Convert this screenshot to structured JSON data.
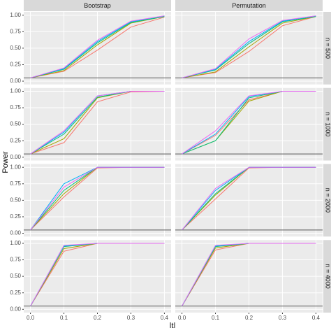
{
  "chart_data": {
    "type": "line",
    "ylabel": "Power",
    "xlabel": "|t|",
    "columns": [
      "Bootstrap",
      "Permutation"
    ],
    "rows": [
      "n = 500",
      "n = 1000",
      "n = 2000",
      "n = 4000"
    ],
    "x": [
      0,
      0.1,
      0.2,
      0.3,
      0.4
    ],
    "xlim": [
      -0.02,
      0.42
    ],
    "xticks": [
      {
        "value": 0,
        "label": "0.0"
      },
      0.1,
      0.2,
      0.3,
      0.4
    ],
    "ylim": [
      -0.05,
      1.05
    ],
    "yticks": [
      {
        "value": 0,
        "label": "0.00"
      },
      0.25,
      {
        "value": 0.5,
        "label": "0.50"
      },
      0.75,
      {
        "value": 1,
        "label": "1.00"
      }
    ],
    "hline": 0.05,
    "grid": true,
    "panels": [
      {
        "series": [
          {
            "color": "#F8766D",
            "values": [
              0.05,
              0.15,
              0.47,
              0.82,
              0.97
            ]
          },
          {
            "color": "#A3A500",
            "values": [
              0.05,
              0.16,
              0.55,
              0.88,
              0.98
            ]
          },
          {
            "color": "#00BF7D",
            "values": [
              0.05,
              0.18,
              0.58,
              0.89,
              0.98
            ]
          },
          {
            "color": "#00B0F6",
            "values": [
              0.05,
              0.19,
              0.6,
              0.9,
              0.99
            ]
          },
          {
            "color": "#E76BF3",
            "values": [
              0.05,
              0.2,
              0.62,
              0.91,
              0.99
            ]
          }
        ]
      },
      {
        "series": [
          {
            "color": "#F8766D",
            "values": [
              0.05,
              0.13,
              0.45,
              0.84,
              0.98
            ]
          },
          {
            "color": "#A3A500",
            "values": [
              0.05,
              0.14,
              0.52,
              0.88,
              0.98
            ]
          },
          {
            "color": "#00BF7D",
            "values": [
              0.05,
              0.17,
              0.57,
              0.9,
              0.98
            ]
          },
          {
            "color": "#00B0F6",
            "values": [
              0.05,
              0.18,
              0.6,
              0.91,
              0.99
            ]
          },
          {
            "color": "#E76BF3",
            "values": [
              0.05,
              0.19,
              0.64,
              0.92,
              0.99
            ]
          }
        ]
      },
      {
        "series": [
          {
            "color": "#F8766D",
            "values": [
              0.05,
              0.22,
              0.84,
              0.99,
              1.0
            ]
          },
          {
            "color": "#A3A500",
            "values": [
              0.05,
              0.28,
              0.9,
              1.0,
              1.0
            ]
          },
          {
            "color": "#00BF7D",
            "values": [
              0.05,
              0.35,
              0.91,
              1.0,
              1.0
            ]
          },
          {
            "color": "#00B0F6",
            "values": [
              0.05,
              0.38,
              0.93,
              1.0,
              1.0
            ]
          },
          {
            "color": "#E76BF3",
            "values": [
              0.05,
              0.4,
              0.93,
              1.0,
              1.0
            ]
          }
        ]
      },
      {
        "series": [
          {
            "color": "#F8766D",
            "values": [
              0.05,
              0.33,
              0.87,
              1.0,
              1.0
            ]
          },
          {
            "color": "#A3A500",
            "values": [
              0.05,
              0.25,
              0.85,
              1.0,
              1.0
            ]
          },
          {
            "color": "#00BF7D",
            "values": [
              0.05,
              0.25,
              0.9,
              1.0,
              1.0
            ]
          },
          {
            "color": "#00B0F6",
            "values": [
              0.05,
              0.35,
              0.92,
              1.0,
              1.0
            ]
          },
          {
            "color": "#E76BF3",
            "values": [
              0.05,
              0.4,
              0.93,
              1.0,
              1.0
            ]
          }
        ]
      },
      {
        "series": [
          {
            "color": "#F8766D",
            "values": [
              0.05,
              0.55,
              0.99,
              1.0,
              1.0
            ]
          },
          {
            "color": "#A3A500",
            "values": [
              0.05,
              0.6,
              1.0,
              1.0,
              1.0
            ]
          },
          {
            "color": "#00BF7D",
            "values": [
              0.05,
              0.65,
              1.0,
              1.0,
              1.0
            ]
          },
          {
            "color": "#00B0F6",
            "values": [
              0.05,
              0.75,
              1.0,
              1.0,
              1.0
            ]
          },
          {
            "color": "#E76BF3",
            "values": [
              0.05,
              0.7,
              1.0,
              1.0,
              1.0
            ]
          }
        ]
      },
      {
        "series": [
          {
            "color": "#F8766D",
            "values": [
              0.05,
              0.52,
              0.99,
              1.0,
              1.0
            ]
          },
          {
            "color": "#A3A500",
            "values": [
              0.05,
              0.58,
              1.0,
              1.0,
              1.0
            ]
          },
          {
            "color": "#00BF7D",
            "values": [
              0.05,
              0.6,
              1.0,
              1.0,
              1.0
            ]
          },
          {
            "color": "#00B0F6",
            "values": [
              0.05,
              0.65,
              1.0,
              1.0,
              1.0
            ]
          },
          {
            "color": "#E76BF3",
            "values": [
              0.05,
              0.68,
              1.0,
              1.0,
              1.0
            ]
          }
        ]
      },
      {
        "series": [
          {
            "color": "#F8766D",
            "values": [
              0.05,
              0.88,
              1.0,
              1.0,
              1.0
            ]
          },
          {
            "color": "#A3A500",
            "values": [
              0.05,
              0.92,
              1.0,
              1.0,
              1.0
            ]
          },
          {
            "color": "#00BF7D",
            "values": [
              0.05,
              0.95,
              1.0,
              1.0,
              1.0
            ]
          },
          {
            "color": "#00B0F6",
            "values": [
              0.05,
              0.96,
              1.0,
              1.0,
              1.0
            ]
          },
          {
            "color": "#E76BF3",
            "values": [
              0.05,
              0.97,
              1.0,
              1.0,
              1.0
            ]
          }
        ]
      },
      {
        "series": [
          {
            "color": "#F8766D",
            "values": [
              0.05,
              0.9,
              1.0,
              1.0,
              1.0
            ]
          },
          {
            "color": "#A3A500",
            "values": [
              0.05,
              0.93,
              1.0,
              1.0,
              1.0
            ]
          },
          {
            "color": "#00BF7D",
            "values": [
              0.05,
              0.95,
              1.0,
              1.0,
              1.0
            ]
          },
          {
            "color": "#00B0F6",
            "values": [
              0.05,
              0.96,
              1.0,
              1.0,
              1.0
            ]
          },
          {
            "color": "#E76BF3",
            "values": [
              0.05,
              0.97,
              1.0,
              1.0,
              1.0
            ]
          }
        ]
      }
    ]
  }
}
